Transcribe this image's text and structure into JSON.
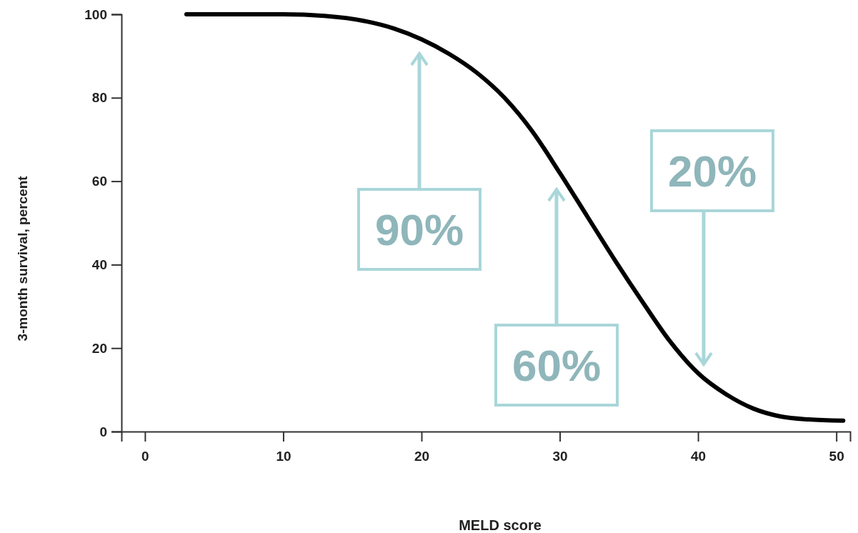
{
  "chart_data": {
    "type": "line",
    "xlabel": "MELD score",
    "ylabel": "3-month survival, percent",
    "x": [
      3,
      6,
      10,
      13,
      16,
      18,
      20,
      22,
      24,
      26,
      28,
      30,
      32,
      34,
      36,
      38,
      40,
      42,
      44,
      46,
      48,
      50.5
    ],
    "series": [
      {
        "color": "#000000",
        "values": [
          100,
          100,
          100,
          99.6,
          98.3,
          96.6,
          94,
          90.5,
          86,
          80,
          72,
          62,
          51.5,
          41,
          31,
          21.5,
          14,
          9,
          5.5,
          3.6,
          2.9,
          2.6
        ]
      }
    ],
    "xlim": [
      -1.7,
      51
    ],
    "xticks": [
      0,
      10,
      20,
      30,
      40,
      50
    ],
    "ylim": [
      0,
      100
    ],
    "yticks": [
      0,
      20,
      40,
      60,
      80,
      100
    ],
    "grid": false,
    "marker": "none",
    "line_style": "solid",
    "annotations": [
      "90%",
      "60%",
      "20%"
    ]
  }
}
